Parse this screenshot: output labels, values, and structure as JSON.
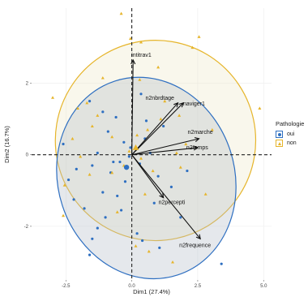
{
  "chart_data": {
    "type": "scatter",
    "subtype": "pca-biplot",
    "title": "",
    "xlabel": "Dim1 (27.4%)",
    "ylabel": "Dim2 (16.7%)",
    "xlim": [
      -3.8,
      5.3
    ],
    "ylim": [
      -3.5,
      4.1
    ],
    "x_ticks": [
      -2.5,
      0.0,
      2.5,
      5.0
    ],
    "x_tick_labels": [
      "-2.5",
      "0.0",
      "2.5",
      "5.0"
    ],
    "y_ticks": [
      -2,
      0,
      2
    ],
    "y_tick_labels": [
      "-2",
      "0",
      "2"
    ],
    "grid": true,
    "reference_lines": "dashed at x=0 and y=0",
    "legend": {
      "title": "Pathologie",
      "position": "right",
      "entries": [
        {
          "label": "oui",
          "color": "#2e6fc1",
          "shape": "circle"
        },
        {
          "label": "non",
          "color": "#e6b52b",
          "shape": "triangle"
        }
      ]
    },
    "variables": [
      {
        "name": "intitrav1",
        "x": 0.05,
        "y": 2.65
      },
      {
        "name": "n2nbrdtage",
        "x": 1.75,
        "y": 1.45
      },
      {
        "name": "naviger1",
        "x": 1.95,
        "y": 1.45
      },
      {
        "name": "n2marche",
        "x": 2.55,
        "y": 0.45
      },
      {
        "name": "n2temps",
        "x": 2.5,
        "y": 0.2
      },
      {
        "name": "n2percepti",
        "x": 1.2,
        "y": -1.2
      },
      {
        "name": "n2frequence",
        "x": 2.6,
        "y": -2.35
      }
    ],
    "ellipses": [
      {
        "group": "oui",
        "center": [
          0.55,
          -0.65
        ],
        "rx": 3.35,
        "ry": 2.85,
        "angle_deg": 18
      },
      {
        "group": "non",
        "center": [
          0.9,
          0.4
        ],
        "rx": 3.8,
        "ry": 2.8,
        "angle_deg": 12
      }
    ],
    "group_means": [
      {
        "group": "oui",
        "x": -0.2,
        "y": -0.35
      },
      {
        "group": "non",
        "x": 0.15,
        "y": 0.2
      }
    ],
    "series": [
      {
        "name": "oui",
        "points": [
          [
            -2.6,
            0.3
          ],
          [
            -1.6,
            1.5
          ],
          [
            -1.1,
            1.2
          ],
          [
            -0.6,
            1.05
          ],
          [
            -0.9,
            0.65
          ],
          [
            -0.3,
            0.35
          ],
          [
            -0.05,
            0.2
          ],
          [
            -1.3,
            0.05
          ],
          [
            -2.1,
            -0.4
          ],
          [
            -1.5,
            -0.3
          ],
          [
            -0.7,
            -0.2
          ],
          [
            -0.25,
            -0.75
          ],
          [
            -0.1,
            -0.05
          ],
          [
            -0.55,
            -1.15
          ],
          [
            0.3,
            -0.25
          ],
          [
            0.5,
            0.45
          ],
          [
            0.7,
            0.05
          ],
          [
            1.0,
            -0.6
          ],
          [
            1.5,
            -0.9
          ],
          [
            2.1,
            -0.45
          ],
          [
            -1.1,
            -1.05
          ],
          [
            -2.2,
            -1.25
          ],
          [
            -1.8,
            -1.5
          ],
          [
            -1.3,
            -2.05
          ],
          [
            -1.0,
            -1.75
          ],
          [
            -0.4,
            -1.55
          ],
          [
            0.2,
            -2.2
          ],
          [
            0.4,
            -2.4
          ],
          [
            1.05,
            -2.6
          ],
          [
            -1.5,
            -2.35
          ],
          [
            -2.4,
            -0.7
          ],
          [
            1.2,
            0.8
          ],
          [
            0.35,
            1.7
          ],
          [
            -0.45,
            -0.2
          ],
          [
            0.85,
            -1.35
          ],
          [
            -1.6,
            -2.8
          ],
          [
            1.85,
            -1.75
          ],
          [
            3.4,
            -3.05
          ],
          [
            0.55,
            0.95
          ],
          [
            -0.8,
            -0.5
          ]
        ]
      },
      {
        "name": "non",
        "points": [
          [
            -0.4,
            3.95
          ],
          [
            0.35,
            3.15
          ],
          [
            -0.05,
            3.25
          ],
          [
            2.55,
            3.3
          ],
          [
            2.3,
            3.0
          ],
          [
            1.8,
            1.1
          ],
          [
            1.25,
            1.5
          ],
          [
            1.0,
            2.45
          ],
          [
            0.3,
            2.1
          ],
          [
            -1.1,
            2.15
          ],
          [
            -1.7,
            1.45
          ],
          [
            -2.05,
            1.3
          ],
          [
            -3.0,
            1.6
          ],
          [
            -1.5,
            0.8
          ],
          [
            -0.75,
            0.5
          ],
          [
            -0.1,
            0.1
          ],
          [
            0.2,
            0.55
          ],
          [
            0.6,
            0.7
          ],
          [
            2.05,
            0.3
          ],
          [
            3.05,
            0.7
          ],
          [
            4.85,
            1.3
          ],
          [
            -1.6,
            -0.55
          ],
          [
            -0.75,
            -0.5
          ],
          [
            -0.3,
            -0.3
          ],
          [
            0.35,
            -0.1
          ],
          [
            1.7,
            0.05
          ],
          [
            1.85,
            -0.35
          ],
          [
            -1.95,
            -0.05
          ],
          [
            -2.55,
            -0.85
          ],
          [
            -0.55,
            -1.6
          ],
          [
            0.5,
            -1.1
          ],
          [
            0.15,
            -2.55
          ],
          [
            0.65,
            -2.7
          ],
          [
            1.55,
            -3.0
          ],
          [
            -2.6,
            -1.7
          ],
          [
            1.1,
            1.0
          ],
          [
            -1.3,
            1.1
          ],
          [
            2.8,
            -1.1
          ],
          [
            -2.25,
            0.45
          ],
          [
            0.8,
            -0.45
          ]
        ]
      }
    ]
  }
}
